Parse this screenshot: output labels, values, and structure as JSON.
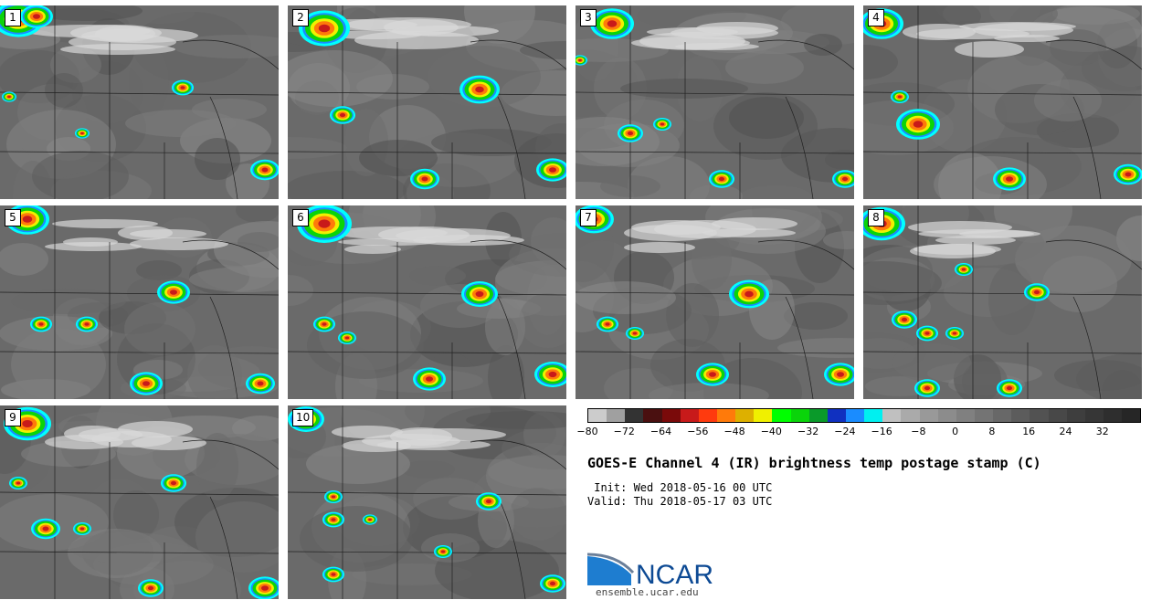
{
  "panels": [
    {
      "label": "1"
    },
    {
      "label": "2"
    },
    {
      "label": "3"
    },
    {
      "label": "4"
    },
    {
      "label": "5"
    },
    {
      "label": "6"
    },
    {
      "label": "7"
    },
    {
      "label": "8"
    },
    {
      "label": "9"
    },
    {
      "label": "10"
    }
  ],
  "colorbar": {
    "min": -80,
    "max": 40,
    "step": 4,
    "tick_labels": [
      "−80",
      "−72",
      "−64",
      "−56",
      "−48",
      "−40",
      "−32",
      "−24",
      "−16",
      "−8",
      "0",
      "8",
      "16",
      "24",
      "32"
    ],
    "colors": [
      "#cccccc",
      "#a0a0a0",
      "#333333",
      "#4a1010",
      "#7a0a0a",
      "#c81a1a",
      "#ff3a0e",
      "#ff7a0a",
      "#ddb000",
      "#f0f000",
      "#00ff00",
      "#0ad40a",
      "#0a9a2a",
      "#1030c0",
      "#1a8cff",
      "#00f0f0",
      "#c0c0c0",
      "#aaaaaa",
      "#999999",
      "#8c8c8c",
      "#808080",
      "#747474",
      "#686868",
      "#5c5c5c",
      "#525252",
      "#484848",
      "#3e3e3e",
      "#363636",
      "#2e2e2e",
      "#262626"
    ]
  },
  "title": "GOES-E Channel 4 (IR) brightness temp postage stamp (C)",
  "init_line": " Init: Wed 2018-05-16 00 UTC",
  "valid_line": "Valid: Thu 2018-05-17 03 UTC",
  "logo": {
    "text": "NCAR",
    "color": "#0d4a94",
    "swoosh_color": "#1e7dd0"
  },
  "site": "ensemble.ucar.edu"
}
